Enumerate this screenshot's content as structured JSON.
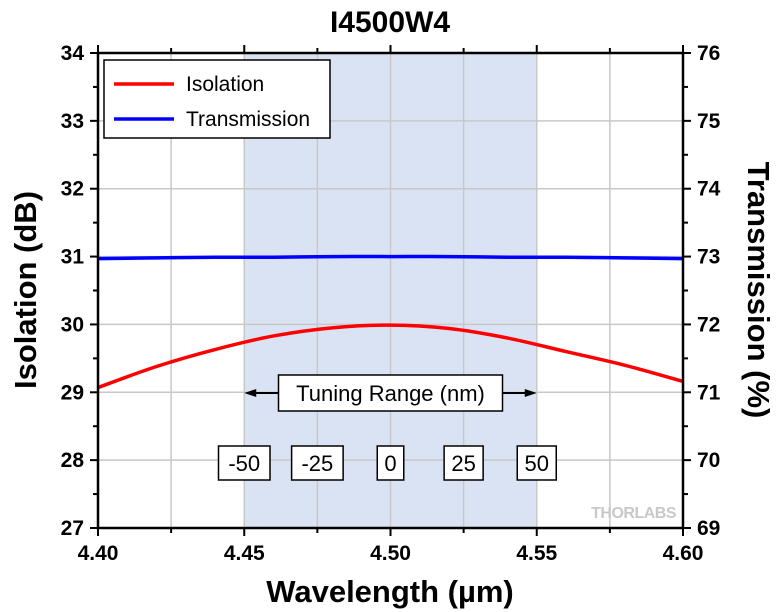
{
  "chart_data": {
    "type": "line",
    "title": "I4500W4",
    "xlabel": "Wavelength (µm)",
    "ylabel_left": "Isolation (dB)",
    "ylabel_right": "Transmission (%)",
    "xlim": [
      4.4,
      4.6
    ],
    "ylim_left": [
      27,
      34
    ],
    "ylim_right": [
      69,
      76
    ],
    "x_ticks": [
      "4.40",
      "4.45",
      "4.50",
      "4.55",
      "4.60"
    ],
    "y_left_ticks": [
      "27",
      "28",
      "29",
      "30",
      "31",
      "32",
      "33",
      "34"
    ],
    "y_right_ticks": [
      "69",
      "70",
      "71",
      "72",
      "73",
      "74",
      "75",
      "76"
    ],
    "grid": true,
    "legend_position": "top-left",
    "shaded_region": {
      "x_start": 4.45,
      "x_end": 4.55,
      "color": "#dae3f3"
    },
    "series": [
      {
        "name": "Isolation",
        "axis": "left",
        "color": "#ff0000",
        "x": [
          4.4,
          4.42,
          4.44,
          4.46,
          4.48,
          4.5,
          4.52,
          4.54,
          4.56,
          4.58,
          4.6
        ],
        "values": [
          29.07,
          29.38,
          29.63,
          29.83,
          29.95,
          29.99,
          29.94,
          29.8,
          29.6,
          29.4,
          29.16
        ]
      },
      {
        "name": "Transmission",
        "axis": "right",
        "color": "#0000ff",
        "x": [
          4.4,
          4.42,
          4.44,
          4.46,
          4.48,
          4.5,
          4.52,
          4.54,
          4.56,
          4.58,
          4.6
        ],
        "values": [
          72.97,
          72.98,
          72.99,
          72.99,
          73.0,
          73.0,
          73.0,
          72.99,
          72.99,
          72.98,
          72.97
        ]
      }
    ],
    "annotations": {
      "tuning_range_label": "Tuning Range (nm)",
      "tuning_offsets": [
        {
          "label": "-50",
          "x": 4.45
        },
        {
          "label": "-25",
          "x": 4.475
        },
        {
          "label": "0",
          "x": 4.5
        },
        {
          "label": "25",
          "x": 4.525
        },
        {
          "label": "50",
          "x": 4.55
        }
      ],
      "watermark": "THORLABS"
    }
  }
}
